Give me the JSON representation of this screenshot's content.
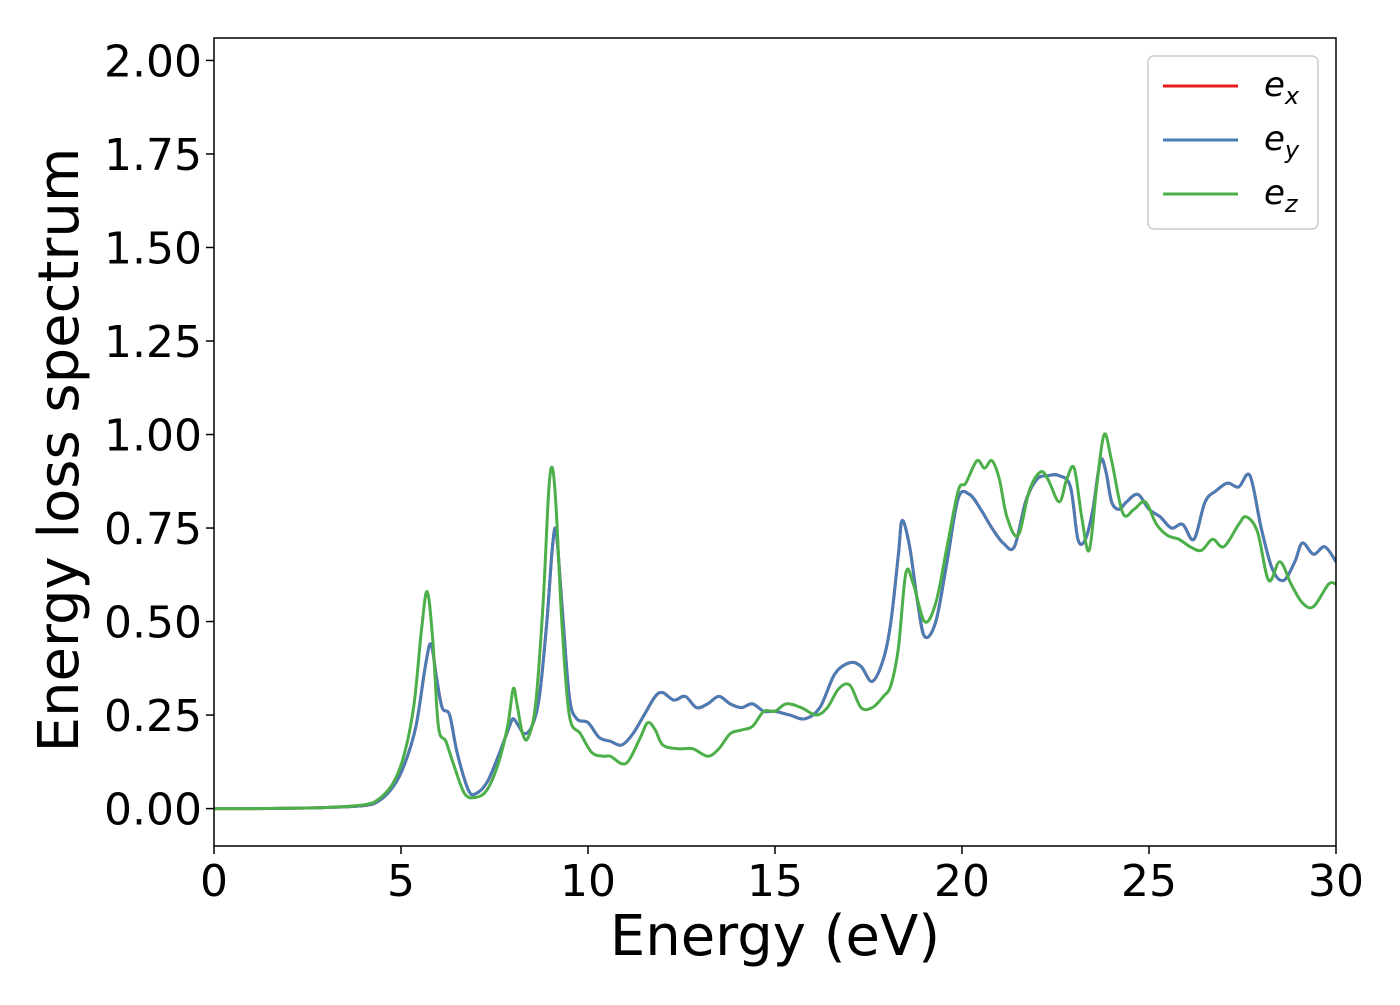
{
  "chart_data": {
    "type": "line",
    "title": "",
    "xlabel": "Energy (eV)",
    "ylabel": "Energy loss spectrum",
    "xlim": [
      0,
      30
    ],
    "ylim": [
      -0.1,
      2.06
    ],
    "xticks": [
      0,
      5,
      10,
      15,
      20,
      25,
      30
    ],
    "xtick_labels": [
      "0",
      "5",
      "10",
      "15",
      "20",
      "25",
      "30"
    ],
    "yticks": [
      0,
      0.25,
      0.5,
      0.75,
      1.0,
      1.25,
      1.5,
      1.75,
      2.0
    ],
    "ytick_labels": [
      "0.00",
      "0.25",
      "0.50",
      "0.75",
      "1.00",
      "1.25",
      "1.50",
      "1.75",
      "2.00"
    ],
    "grid": false,
    "legend": {
      "position": "top-right"
    },
    "series": [
      {
        "name": "e",
        "subscript": "x",
        "color": "#e41a1c",
        "x": [
          0,
          1,
          2,
          3,
          4,
          4.4,
          4.8,
          5.1,
          5.4,
          5.65,
          5.8,
          5.95,
          6.1,
          6.3,
          6.5,
          6.8,
          7.0,
          7.3,
          7.6,
          7.9,
          8.0,
          8.15,
          8.3,
          8.5,
          8.7,
          8.9,
          9.05,
          9.15,
          9.3,
          9.5,
          9.7,
          10.0,
          10.3,
          10.6,
          10.9,
          11.2,
          11.5,
          11.8,
          12.0,
          12.3,
          12.6,
          12.9,
          13.2,
          13.5,
          13.8,
          14.1,
          14.4,
          14.7,
          15.0,
          15.4,
          15.8,
          16.2,
          16.6,
          17.0,
          17.3,
          17.6,
          17.9,
          18.1,
          18.3,
          18.4,
          18.6,
          18.8,
          19.0,
          19.3,
          19.6,
          19.9,
          20.2,
          20.5,
          20.8,
          21.1,
          21.4,
          21.7,
          22.0,
          22.3,
          22.6,
          22.9,
          23.1,
          23.3,
          23.5,
          23.7,
          23.85,
          24.0,
          24.2,
          24.4,
          24.7,
          25.0,
          25.3,
          25.6,
          25.9,
          26.2,
          26.5,
          26.8,
          27.1,
          27.4,
          27.7,
          28.0,
          28.3,
          28.6,
          28.9,
          29.1,
          29.4,
          29.7,
          30.0
        ],
        "values": [
          0.0,
          0.0,
          0.001,
          0.003,
          0.008,
          0.02,
          0.06,
          0.12,
          0.22,
          0.38,
          0.44,
          0.35,
          0.27,
          0.25,
          0.15,
          0.05,
          0.04,
          0.07,
          0.14,
          0.22,
          0.24,
          0.22,
          0.2,
          0.22,
          0.3,
          0.5,
          0.7,
          0.74,
          0.55,
          0.3,
          0.24,
          0.23,
          0.19,
          0.18,
          0.17,
          0.2,
          0.25,
          0.3,
          0.31,
          0.29,
          0.3,
          0.27,
          0.28,
          0.3,
          0.28,
          0.27,
          0.28,
          0.26,
          0.26,
          0.25,
          0.24,
          0.27,
          0.36,
          0.39,
          0.38,
          0.34,
          0.4,
          0.5,
          0.68,
          0.77,
          0.7,
          0.56,
          0.46,
          0.5,
          0.66,
          0.83,
          0.84,
          0.8,
          0.75,
          0.71,
          0.7,
          0.82,
          0.88,
          0.89,
          0.89,
          0.86,
          0.72,
          0.72,
          0.8,
          0.93,
          0.9,
          0.82,
          0.8,
          0.82,
          0.84,
          0.8,
          0.78,
          0.75,
          0.76,
          0.72,
          0.82,
          0.85,
          0.87,
          0.86,
          0.89,
          0.75,
          0.64,
          0.61,
          0.66,
          0.71,
          0.68,
          0.7,
          0.66
        ]
      },
      {
        "name": "e",
        "subscript": "y",
        "color": "#4a7cb5",
        "x": [
          0,
          1,
          2,
          3,
          4,
          4.4,
          4.8,
          5.1,
          5.4,
          5.65,
          5.8,
          5.95,
          6.1,
          6.3,
          6.5,
          6.8,
          7.0,
          7.3,
          7.6,
          7.9,
          8.0,
          8.15,
          8.3,
          8.5,
          8.7,
          8.9,
          9.05,
          9.15,
          9.3,
          9.5,
          9.7,
          10.0,
          10.3,
          10.6,
          10.9,
          11.2,
          11.5,
          11.8,
          12.0,
          12.3,
          12.6,
          12.9,
          13.2,
          13.5,
          13.8,
          14.1,
          14.4,
          14.7,
          15.0,
          15.4,
          15.8,
          16.2,
          16.6,
          17.0,
          17.3,
          17.6,
          17.9,
          18.1,
          18.3,
          18.4,
          18.6,
          18.8,
          19.0,
          19.3,
          19.6,
          19.9,
          20.2,
          20.5,
          20.8,
          21.1,
          21.4,
          21.7,
          22.0,
          22.3,
          22.6,
          22.9,
          23.1,
          23.3,
          23.5,
          23.7,
          23.85,
          24.0,
          24.2,
          24.4,
          24.7,
          25.0,
          25.3,
          25.6,
          25.9,
          26.2,
          26.5,
          26.8,
          27.1,
          27.4,
          27.7,
          28.0,
          28.3,
          28.6,
          28.9,
          29.1,
          29.4,
          29.7,
          30.0
        ],
        "values": [
          0.0,
          0.0,
          0.001,
          0.003,
          0.008,
          0.02,
          0.06,
          0.12,
          0.22,
          0.38,
          0.44,
          0.35,
          0.27,
          0.25,
          0.15,
          0.05,
          0.04,
          0.07,
          0.14,
          0.22,
          0.24,
          0.22,
          0.2,
          0.22,
          0.3,
          0.5,
          0.7,
          0.74,
          0.55,
          0.3,
          0.24,
          0.23,
          0.19,
          0.18,
          0.17,
          0.2,
          0.25,
          0.3,
          0.31,
          0.29,
          0.3,
          0.27,
          0.28,
          0.3,
          0.28,
          0.27,
          0.28,
          0.26,
          0.26,
          0.25,
          0.24,
          0.27,
          0.36,
          0.39,
          0.38,
          0.34,
          0.4,
          0.5,
          0.68,
          0.77,
          0.7,
          0.56,
          0.46,
          0.5,
          0.66,
          0.83,
          0.84,
          0.8,
          0.75,
          0.71,
          0.7,
          0.82,
          0.88,
          0.89,
          0.89,
          0.86,
          0.72,
          0.72,
          0.8,
          0.93,
          0.9,
          0.82,
          0.8,
          0.82,
          0.84,
          0.8,
          0.78,
          0.75,
          0.76,
          0.72,
          0.82,
          0.85,
          0.87,
          0.86,
          0.89,
          0.75,
          0.64,
          0.61,
          0.66,
          0.71,
          0.68,
          0.7,
          0.66
        ]
      },
      {
        "name": "e",
        "subscript": "z",
        "color": "#4daf4a",
        "x": [
          0,
          1,
          2,
          3,
          4,
          4.4,
          4.8,
          5.1,
          5.35,
          5.55,
          5.7,
          5.85,
          6.0,
          6.2,
          6.4,
          6.7,
          7.0,
          7.3,
          7.6,
          7.85,
          8.0,
          8.1,
          8.25,
          8.4,
          8.6,
          8.8,
          8.95,
          9.05,
          9.15,
          9.3,
          9.5,
          9.8,
          10.1,
          10.4,
          10.6,
          10.9,
          11.1,
          11.4,
          11.6,
          11.8,
          12.0,
          12.4,
          12.8,
          13.2,
          13.5,
          13.8,
          14.1,
          14.4,
          14.7,
          15.0,
          15.3,
          15.7,
          16.1,
          16.4,
          16.7,
          17.0,
          17.3,
          17.6,
          17.9,
          18.1,
          18.3,
          18.5,
          18.7,
          19.0,
          19.3,
          19.6,
          19.9,
          20.1,
          20.4,
          20.6,
          20.8,
          21.0,
          21.2,
          21.5,
          21.8,
          22.1,
          22.3,
          22.6,
          22.8,
          23.0,
          23.2,
          23.4,
          23.6,
          23.8,
          24.0,
          24.3,
          24.6,
          24.9,
          25.2,
          25.5,
          25.8,
          26.1,
          26.4,
          26.7,
          27.0,
          27.4,
          27.6,
          27.9,
          28.2,
          28.5,
          28.8,
          29.1,
          29.4,
          29.8,
          30.0
        ],
        "values": [
          0.0,
          0.0,
          0.001,
          0.003,
          0.01,
          0.025,
          0.07,
          0.15,
          0.28,
          0.48,
          0.58,
          0.45,
          0.22,
          0.18,
          0.12,
          0.04,
          0.03,
          0.05,
          0.12,
          0.22,
          0.32,
          0.28,
          0.2,
          0.19,
          0.28,
          0.55,
          0.85,
          0.91,
          0.8,
          0.5,
          0.25,
          0.2,
          0.15,
          0.14,
          0.14,
          0.12,
          0.13,
          0.19,
          0.23,
          0.21,
          0.17,
          0.16,
          0.16,
          0.14,
          0.16,
          0.2,
          0.21,
          0.22,
          0.26,
          0.26,
          0.28,
          0.27,
          0.25,
          0.27,
          0.32,
          0.33,
          0.27,
          0.27,
          0.3,
          0.33,
          0.43,
          0.63,
          0.6,
          0.5,
          0.55,
          0.7,
          0.85,
          0.87,
          0.93,
          0.91,
          0.93,
          0.88,
          0.78,
          0.73,
          0.85,
          0.9,
          0.88,
          0.82,
          0.88,
          0.91,
          0.78,
          0.69,
          0.86,
          1.0,
          0.93,
          0.79,
          0.8,
          0.82,
          0.76,
          0.73,
          0.72,
          0.7,
          0.69,
          0.72,
          0.7,
          0.76,
          0.78,
          0.74,
          0.61,
          0.66,
          0.6,
          0.55,
          0.54,
          0.6,
          0.6
        ]
      }
    ]
  }
}
